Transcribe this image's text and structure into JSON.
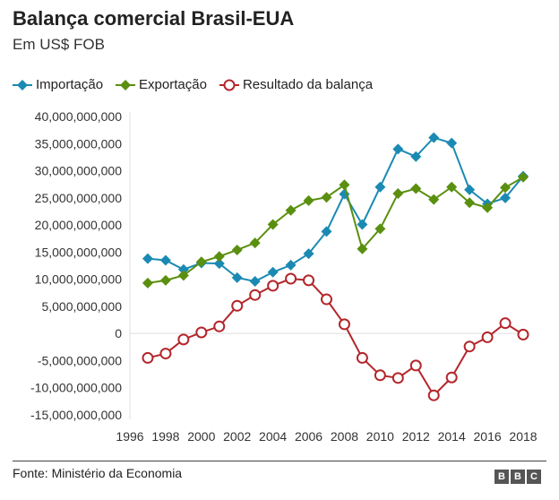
{
  "title": "Balança comercial Brasil-EUA",
  "subtitle": "Em US$ FOB",
  "source": "Fonte: Ministério da Economia",
  "logo": "BBC",
  "chart_data": {
    "type": "line",
    "x": [
      1997,
      1998,
      1999,
      2000,
      2001,
      2002,
      2003,
      2004,
      2005,
      2006,
      2007,
      2008,
      2009,
      2010,
      2011,
      2012,
      2013,
      2014,
      2015,
      2016,
      2017,
      2018
    ],
    "xlim": [
      1996,
      2018
    ],
    "xticks": [
      "1996",
      "1998",
      "2000",
      "2002",
      "2004",
      "2006",
      "2008",
      "2010",
      "2012",
      "2014",
      "2016",
      "2018"
    ],
    "ylim": [
      -15000000000,
      40000000000
    ],
    "yticks": [
      "40,000,000,000",
      "35,000,000,000",
      "30,000,000,000",
      "25,000,000,000",
      "20,000,000,000",
      "15,000,000,000",
      "10,000,000,000",
      "5,000,000,000",
      "0",
      "-5,000,000,000",
      "-10,000,000,000",
      "-15,000,000,000"
    ],
    "grid": "zero line only",
    "legend": "top",
    "series": [
      {
        "name": "Importação",
        "color": "#1a8ab3",
        "marker": "diamond",
        "values": [
          13.8,
          13.5,
          11.8,
          13.0,
          12.9,
          10.3,
          9.6,
          11.3,
          12.6,
          14.7,
          18.8,
          25.7,
          20.1,
          27.0,
          34.0,
          32.6,
          36.1,
          35.1,
          26.5,
          23.9,
          25.0,
          29.0
        ]
      },
      {
        "name": "Exportação",
        "color": "#5a8f0f",
        "marker": "diamond",
        "values": [
          9.3,
          9.8,
          10.7,
          13.2,
          14.2,
          15.4,
          16.7,
          20.1,
          22.7,
          24.5,
          25.1,
          27.4,
          15.6,
          19.3,
          25.8,
          26.7,
          24.7,
          27.0,
          24.1,
          23.2,
          26.9,
          28.8
        ]
      },
      {
        "name": "Resultado da balança",
        "color": "#b3262b",
        "marker": "circle-open",
        "values": [
          -4.5,
          -3.7,
          -1.1,
          0.2,
          1.3,
          5.1,
          7.1,
          8.8,
          10.1,
          9.8,
          6.3,
          1.7,
          -4.5,
          -7.7,
          -8.2,
          -5.9,
          -11.4,
          -8.1,
          -2.4,
          -0.7,
          1.9,
          -0.2
        ]
      }
    ],
    "value_unit_in_series": "billions US$"
  }
}
